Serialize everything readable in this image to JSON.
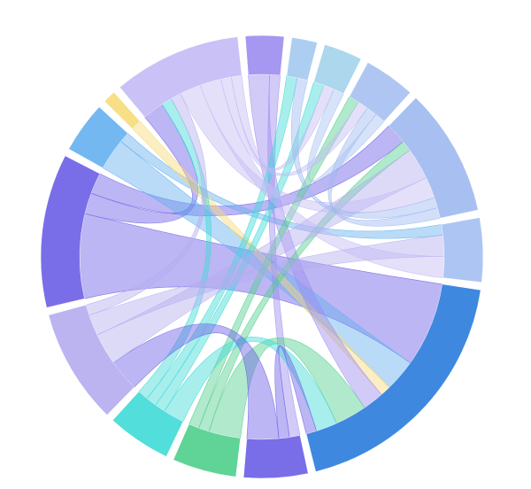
{
  "chart_data": {
    "type": "chord",
    "groups": [
      {
        "color": "#c4baf5"
      },
      {
        "color": "#9c8cf0"
      },
      {
        "color": "#a3c9f0"
      },
      {
        "color": "#a3d3ea"
      },
      {
        "color": "#a6c0f2"
      },
      {
        "color": "#9db9f0"
      },
      {
        "color": "#a4bff2"
      },
      {
        "color": "#2a7bdb"
      },
      {
        "color": "#6a5de6"
      },
      {
        "color": "#4fce8c"
      },
      {
        "color": "#3fdad6"
      },
      {
        "color": "#b4acef"
      },
      {
        "color": "#6c5ee6"
      },
      {
        "color": "#64b0ee"
      },
      {
        "color": "#f7da78"
      }
    ],
    "flows": [
      {
        "source": 12,
        "target": 7,
        "value": 8
      },
      {
        "source": 12,
        "target": 0,
        "value": 2
      },
      {
        "source": 12,
        "target": 5,
        "value": 2
      },
      {
        "source": 13,
        "target": 7,
        "value": 3
      },
      {
        "source": 13,
        "target": 6,
        "value": 1
      },
      {
        "source": 14,
        "target": 7,
        "value": 1
      },
      {
        "source": 1,
        "target": 7,
        "value": 2
      },
      {
        "source": 1,
        "target": 8,
        "value": 1
      },
      {
        "source": 9,
        "target": 7,
        "value": 3
      },
      {
        "source": 9,
        "target": 5,
        "value": 1
      },
      {
        "source": 9,
        "target": 4,
        "value": 1
      },
      {
        "source": 10,
        "target": 7,
        "value": 2
      },
      {
        "source": 10,
        "target": 3,
        "value": 1
      },
      {
        "source": 10,
        "target": 2,
        "value": 1
      },
      {
        "source": 10,
        "target": 0,
        "value": 1
      },
      {
        "source": 8,
        "target": 7,
        "value": 1
      },
      {
        "source": 8,
        "target": 11,
        "value": 3
      },
      {
        "source": 11,
        "target": 5,
        "value": 3
      },
      {
        "source": 11,
        "target": 6,
        "value": 2
      },
      {
        "source": 11,
        "target": 0,
        "value": 1
      },
      {
        "source": 0,
        "target": 5,
        "value": 2
      },
      {
        "source": 0,
        "target": 6,
        "value": 2
      },
      {
        "source": 0,
        "target": 4,
        "value": 1
      },
      {
        "source": 0,
        "target": 3,
        "value": 1
      },
      {
        "source": 5,
        "target": 2,
        "value": 1
      },
      {
        "source": 5,
        "target": 4,
        "value": 1
      },
      {
        "source": 4,
        "target": 3,
        "value": 1
      }
    ]
  }
}
